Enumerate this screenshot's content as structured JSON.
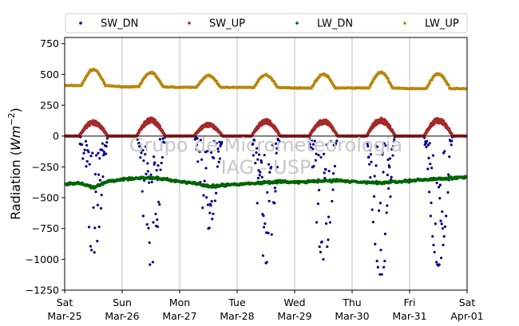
{
  "chart_data": {
    "type": "scatter",
    "ylabel": "Radiation (W m⁻²)",
    "ylabel_parts": {
      "text": "Radiation (",
      "unit": "Wm",
      "exponent": "−2",
      "close": ")"
    },
    "ylim": [
      -1250,
      800
    ],
    "yticks": [
      -1250,
      -1000,
      -750,
      -500,
      -250,
      0,
      250,
      500,
      750
    ],
    "ytick_labels": [
      "−1250",
      "−1000",
      "−750",
      "−500",
      "−250",
      "0",
      "250",
      "500",
      "750"
    ],
    "xlim": [
      "2023-03-25",
      "2023-04-01"
    ],
    "xticks": [
      {
        "date": "2023-03-25",
        "day": "Sat",
        "label": "Mar-25"
      },
      {
        "date": "2023-03-26",
        "day": "Sun",
        "label": "Mar-26"
      },
      {
        "date": "2023-03-27",
        "day": "Mon",
        "label": "Mar-27"
      },
      {
        "date": "2023-03-28",
        "day": "Tue",
        "label": "Mar-28"
      },
      {
        "date": "2023-03-29",
        "day": "Wed",
        "label": "Mar-29"
      },
      {
        "date": "2023-03-30",
        "day": "Thu",
        "label": "Mar-30"
      },
      {
        "date": "2023-03-31",
        "day": "Fri",
        "label": "Mar-31"
      },
      {
        "date": "2023-04-01",
        "day": "Sat",
        "label": "Apr-01"
      }
    ],
    "grid": "vertical",
    "zero_line": true,
    "legend_position": "top",
    "watermark": [
      "Grupo de Micrometeorologia",
      "IAG - USP"
    ],
    "series": [
      {
        "name": "SW_DN",
        "color": "#00008b",
        "marker_size": 1.6,
        "daily_peak": [
          -950,
          -1050,
          -750,
          -1030,
          -1000,
          -1130,
          -1050
        ],
        "rise_hour": 6,
        "set_hour": 18
      },
      {
        "name": "SW_UP",
        "color": "#a52a2a",
        "marker_size": 1.9,
        "daily_peak": [
          120,
          140,
          100,
          130,
          130,
          140,
          140
        ],
        "rise_hour": 6,
        "set_hour": 18
      },
      {
        "name": "LW_DN",
        "color": "#006400",
        "marker_size": 1.9,
        "points": [
          [
            "2023-03-25T00:00",
            -390
          ],
          [
            "2023-03-25T06:00",
            -380
          ],
          [
            "2023-03-25T12:00",
            -420
          ],
          [
            "2023-03-25T18:00",
            -370
          ],
          [
            "2023-03-26T00:00",
            -350
          ],
          [
            "2023-03-26T06:00",
            -340
          ],
          [
            "2023-03-26T12:00",
            -340
          ],
          [
            "2023-03-26T18:00",
            -350
          ],
          [
            "2023-03-27T00:00",
            -370
          ],
          [
            "2023-03-27T06:00",
            -380
          ],
          [
            "2023-03-27T12:00",
            -410
          ],
          [
            "2023-03-27T18:00",
            -400
          ],
          [
            "2023-03-28T00:00",
            -390
          ],
          [
            "2023-03-28T06:00",
            -385
          ],
          [
            "2023-03-28T12:00",
            -375
          ],
          [
            "2023-03-28T18:00",
            -370
          ],
          [
            "2023-03-29T00:00",
            -375
          ],
          [
            "2023-03-29T06:00",
            -370
          ],
          [
            "2023-03-29T12:00",
            -365
          ],
          [
            "2023-03-29T18:00",
            -360
          ],
          [
            "2023-03-30T00:00",
            -370
          ],
          [
            "2023-03-30T06:00",
            -375
          ],
          [
            "2023-03-30T12:00",
            -380
          ],
          [
            "2023-03-30T18:00",
            -370
          ],
          [
            "2023-03-31T00:00",
            -365
          ],
          [
            "2023-03-31T06:00",
            -355
          ],
          [
            "2023-03-31T12:00",
            -345
          ],
          [
            "2023-03-31T18:00",
            -340
          ],
          [
            "2023-04-01T00:00",
            -335
          ]
        ]
      },
      {
        "name": "LW_UP",
        "color": "#b8860b",
        "marker_size": 1.9,
        "night_base": [
          410,
          400,
          395,
          395,
          390,
          390,
          385
        ],
        "daily_peak": [
          540,
          515,
          490,
          495,
          500,
          515,
          505
        ],
        "rise_hour": 7,
        "set_hour": 17
      }
    ]
  }
}
